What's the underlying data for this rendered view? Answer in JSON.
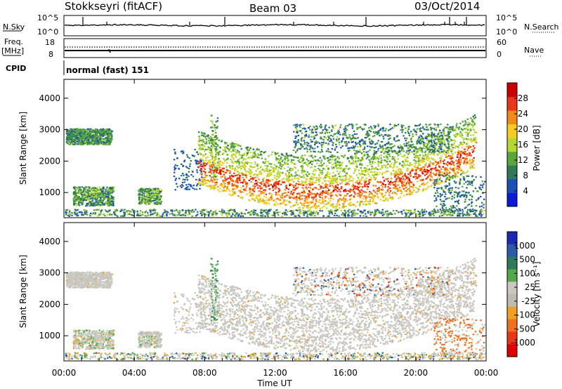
{
  "header": {
    "title": "Stokkseyri (fitACF)",
    "beam": "Beam 03",
    "date": "03/Oct/2014"
  },
  "strip_labels": {
    "nsky": "N.Sky",
    "nsky_hi": "10^5",
    "nsky_lo": "10^0",
    "nsearch": "N.Search",
    "nsearch_hi": "10^5",
    "nsearch_lo": "10^0",
    "freq_top": "Freq.",
    "freq_unit": "[MHz]",
    "freq_hi": "18",
    "freq_lo": "8",
    "nave": "Nave",
    "nave_hi": "60",
    "nave_lo": "0",
    "cpid": "CPID",
    "cpid_value": "normal (fast) 151"
  },
  "chart_data": [
    {
      "type": "heatmap",
      "quantity": "power",
      "ylabel": "Slant Range [km]",
      "ylim": [
        200,
        4600
      ],
      "yticks": [
        "1000",
        "2000",
        "3000",
        "4000"
      ],
      "colorbar": {
        "label": "Power [dB]",
        "ticks": [
          "4",
          "8",
          "12",
          "16",
          "20",
          "24",
          "28"
        ],
        "colors": [
          "#0a1cd8",
          "#1a50b8",
          "#2f7a58",
          "#5aa63a",
          "#b4d832",
          "#f6cc22",
          "#f28a18",
          "#e83818",
          "#cc0000"
        ]
      }
    },
    {
      "type": "heatmap",
      "quantity": "velocity",
      "ylabel": "Slant Range [km]",
      "ylim": [
        200,
        4600
      ],
      "yticks": [
        "1000",
        "2000",
        "3000",
        "4000"
      ],
      "xlabel": "Time UT",
      "xticks": [
        "00:00",
        "04:00",
        "08:00",
        "12:00",
        "16:00",
        "20:00",
        "00:00"
      ],
      "colorbar": {
        "label": "Velocity [m s⁻¹]",
        "ticks": [
          "1000",
          "500",
          "100",
          "25",
          "-25",
          "-100",
          "-500",
          "-1000"
        ],
        "colors": [
          "#1c2ab4",
          "#2c5ca8",
          "#2e7a5a",
          "#52a84a",
          "#c8c8c0",
          "#bcbcb0",
          "#f0a020",
          "#f07020",
          "#e83818",
          "#e00000"
        ]
      }
    }
  ]
}
